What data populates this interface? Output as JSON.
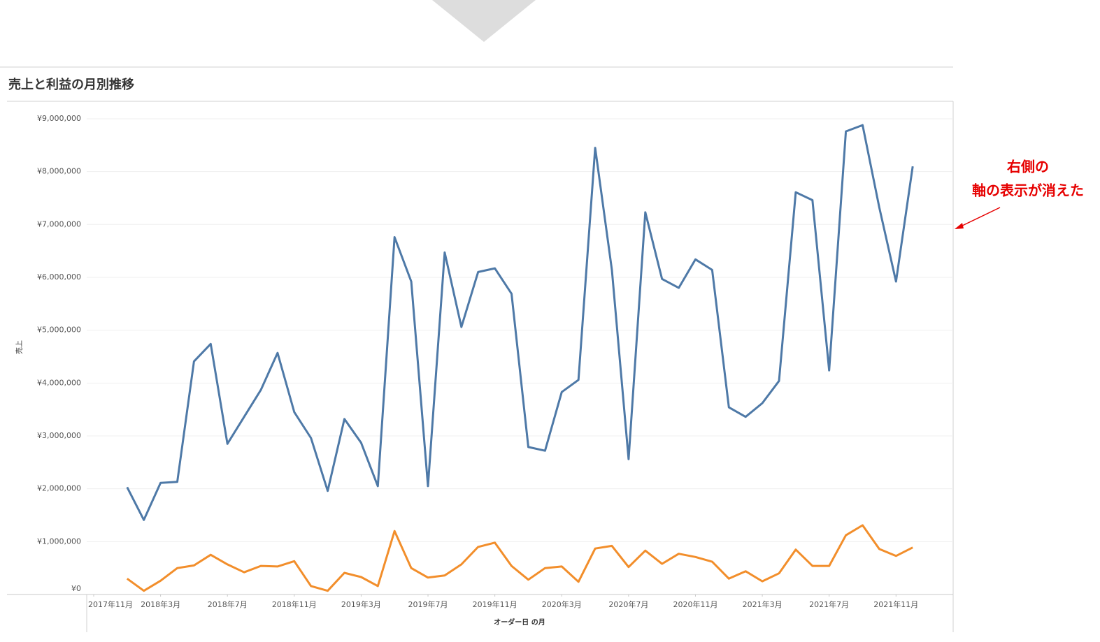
{
  "chart_data": {
    "type": "line",
    "title": "売上と利益の月別推移",
    "x_label": "オーダー日 の月",
    "y_label": "売上",
    "annotations": [
      "右側の",
      "軸の表示が消えた"
    ],
    "x": [
      "2018-01",
      "2018-02",
      "2018-03",
      "2018-04",
      "2018-05",
      "2018-06",
      "2018-07",
      "2018-08",
      "2018-09",
      "2018-10",
      "2018-11",
      "2018-12",
      "2019-01",
      "2019-02",
      "2019-03",
      "2019-04",
      "2019-05",
      "2019-06",
      "2019-07",
      "2019-08",
      "2019-09",
      "2019-10",
      "2019-11",
      "2019-12",
      "2020-01",
      "2020-02",
      "2020-03",
      "2020-04",
      "2020-05",
      "2020-06",
      "2020-07",
      "2020-08",
      "2020-09",
      "2020-10",
      "2020-11",
      "2020-12",
      "2021-01",
      "2021-02",
      "2021-03",
      "2021-04",
      "2021-05",
      "2021-06",
      "2021-07",
      "2021-08",
      "2021-09",
      "2021-10",
      "2021-11",
      "2021-12"
    ],
    "xlim": [
      "2017-11",
      "2022-02"
    ],
    "xticks": [
      {
        "value": "2017-11",
        "label": "2017年11月"
      },
      {
        "value": "2018-03",
        "label": "2018年3月"
      },
      {
        "value": "2018-07",
        "label": "2018年7月"
      },
      {
        "value": "2018-11",
        "label": "2018年11月"
      },
      {
        "value": "2019-03",
        "label": "2019年3月"
      },
      {
        "value": "2019-07",
        "label": "2019年7月"
      },
      {
        "value": "2019-11",
        "label": "2019年11月"
      },
      {
        "value": "2020-03",
        "label": "2020年3月"
      },
      {
        "value": "2020-07",
        "label": "2020年7月"
      },
      {
        "value": "2020-11",
        "label": "2020年11月"
      },
      {
        "value": "2021-03",
        "label": "2021年3月"
      },
      {
        "value": "2021-07",
        "label": "2021年7月"
      },
      {
        "value": "2021-11",
        "label": "2021年11月"
      }
    ],
    "ylim": [
      0,
      9330000
    ],
    "yticks": [
      {
        "value": 0,
        "label": "¥0"
      },
      {
        "value": 1000000,
        "label": "¥1,000,000"
      },
      {
        "value": 2000000,
        "label": "¥2,000,000"
      },
      {
        "value": 3000000,
        "label": "¥3,000,000"
      },
      {
        "value": 4000000,
        "label": "¥4,000,000"
      },
      {
        "value": 5000000,
        "label": "¥5,000,000"
      },
      {
        "value": 6000000,
        "label": "¥6,000,000"
      },
      {
        "value": 7000000,
        "label": "¥7,000,000"
      },
      {
        "value": 8000000,
        "label": "¥8,000,000"
      },
      {
        "value": 9000000,
        "label": "¥9,000,000"
      }
    ],
    "grid": true,
    "series": [
      {
        "color": "#4e79a7",
        "values": [
          2030000,
          1410000,
          2110000,
          2130000,
          4410000,
          4740000,
          2850000,
          3360000,
          3870000,
          4570000,
          3450000,
          2960000,
          1960000,
          3320000,
          2870000,
          2050000,
          6760000,
          5920000,
          2050000,
          6470000,
          5060000,
          6100000,
          6170000,
          5690000,
          2790000,
          2720000,
          3830000,
          4060000,
          8450000,
          6140000,
          2560000,
          7230000,
          5970000,
          5800000,
          6340000,
          6140000,
          3540000,
          3360000,
          3620000,
          4040000,
          7610000,
          7460000,
          4240000,
          8760000,
          8880000,
          7320000,
          5920000,
          8100000
        ]
      },
      {
        "color": "#f28e2b",
        "values": [
          300000,
          70000,
          260000,
          500000,
          550000,
          750000,
          570000,
          420000,
          540000,
          530000,
          630000,
          160000,
          70000,
          410000,
          330000,
          160000,
          1200000,
          500000,
          320000,
          360000,
          570000,
          900000,
          980000,
          540000,
          280000,
          500000,
          530000,
          240000,
          870000,
          920000,
          520000,
          830000,
          580000,
          770000,
          710000,
          620000,
          300000,
          440000,
          250000,
          400000,
          850000,
          540000,
          540000,
          1120000,
          1310000,
          860000,
          730000,
          890000
        ]
      }
    ]
  }
}
